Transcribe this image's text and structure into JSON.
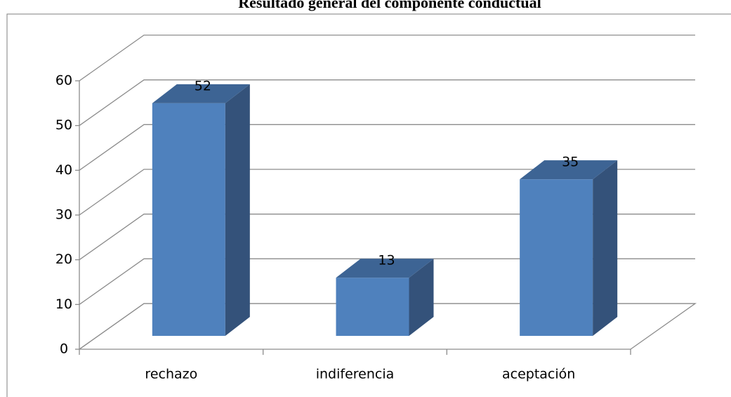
{
  "chart_data": {
    "type": "bar3d",
    "title": "Resultado general  del componente conductual",
    "categories": [
      "rechazo",
      "indiferencia",
      "aceptación"
    ],
    "values": [
      52,
      13,
      35
    ],
    "color": "#4f81bd",
    "ylim": [
      0,
      60
    ],
    "yticks": [
      0,
      10,
      20,
      30,
      40,
      50,
      60
    ],
    "grid": true
  }
}
